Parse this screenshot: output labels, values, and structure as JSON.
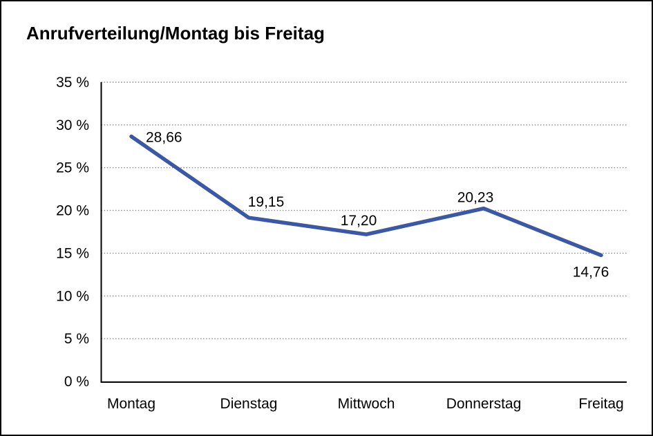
{
  "chart_data": {
    "type": "line",
    "title": "Anrufverteilung/Montag bis Freitag",
    "categories": [
      "Montag",
      "Dienstag",
      "Mittwoch",
      "Donnerstag",
      "Freitag"
    ],
    "values": [
      28.66,
      19.15,
      17.2,
      20.23,
      14.76
    ],
    "value_labels": [
      "28,66",
      "19,15",
      "17,20",
      "20,23",
      "14,76"
    ],
    "xlabel": "",
    "ylabel": "",
    "ylim": [
      0,
      35
    ],
    "y_ticks": [
      0,
      5,
      10,
      15,
      20,
      25,
      30,
      35
    ],
    "y_tick_labels": [
      "0 %",
      "5 %",
      "10 %",
      "15 %",
      "20 %",
      "25 %",
      "30 %",
      "35 %"
    ],
    "grid": "horizontal-dotted",
    "legend": "none"
  },
  "colors": {
    "line": "#3A58A5",
    "grid": "#8A8A8A",
    "axis": "#000000",
    "text": "#000000",
    "background": "#FFFFFF",
    "border": "#000000"
  }
}
